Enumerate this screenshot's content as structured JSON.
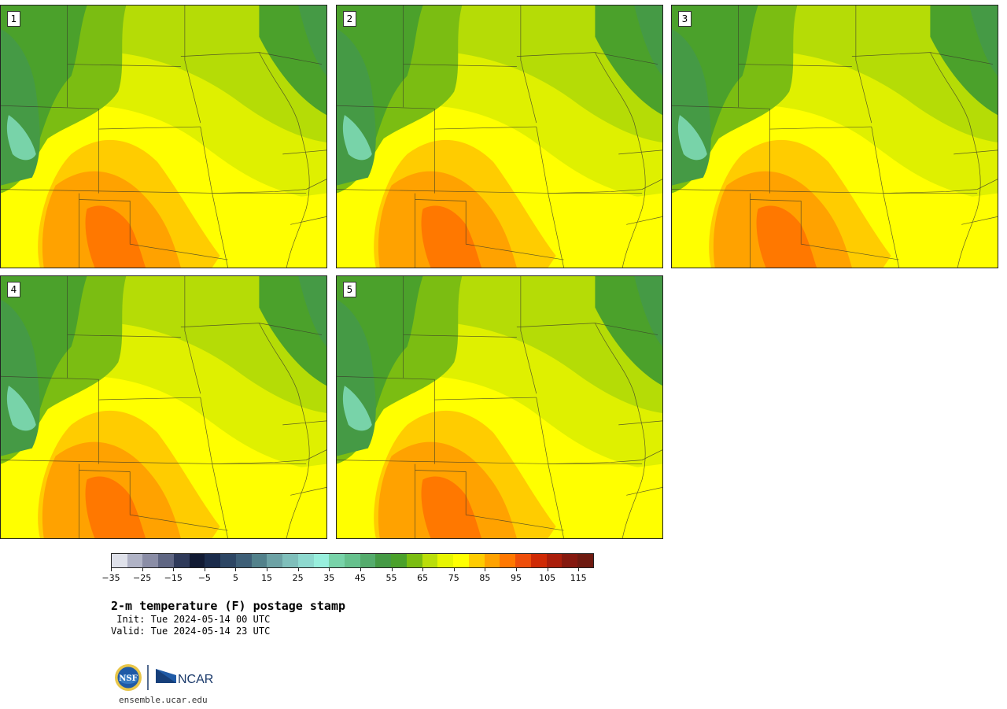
{
  "panels": [
    {
      "label": "1"
    },
    {
      "label": "2"
    },
    {
      "label": "3"
    },
    {
      "label": "4"
    },
    {
      "label": "5"
    }
  ],
  "colorbar": {
    "colors": [
      "#dfe1ea",
      "#b0b3c6",
      "#8a8da6",
      "#5f6683",
      "#2f3a5a",
      "#111a33",
      "#1b2c4c",
      "#2d4664",
      "#3e5f77",
      "#52818b",
      "#6da2a5",
      "#7fbfbb",
      "#8ed9cf",
      "#98efdd",
      "#78d3a9",
      "#66c18d",
      "#55ac6d",
      "#459a45",
      "#4ba12b",
      "#7bbd12",
      "#bade0a",
      "#e7f500",
      "#ffff00",
      "#ffcc00",
      "#ffa200",
      "#ff7800",
      "#ee4e0a",
      "#cf2a05",
      "#aa1e0b",
      "#85190f",
      "#6e1a10"
    ],
    "tick_values": [
      -35,
      -25,
      -15,
      -5,
      5,
      15,
      25,
      35,
      45,
      55,
      65,
      75,
      85,
      95,
      105,
      115
    ],
    "tick_labels": [
      "−35",
      "−25",
      "−15",
      "−5",
      "5",
      "15",
      "25",
      "35",
      "45",
      "55",
      "65",
      "75",
      "85",
      "95",
      "105",
      "115"
    ],
    "range": [
      -35,
      120
    ]
  },
  "text": {
    "title": "2-m temperature (F) postage stamp",
    "init": " Init: Tue 2024-05-14 00 UTC",
    "valid": "Valid: Tue 2024-05-14 23 UTC",
    "site": "ensemble.ucar.edu",
    "nsf_logo": "NSF",
    "ncar_logo": "NCAR"
  }
}
